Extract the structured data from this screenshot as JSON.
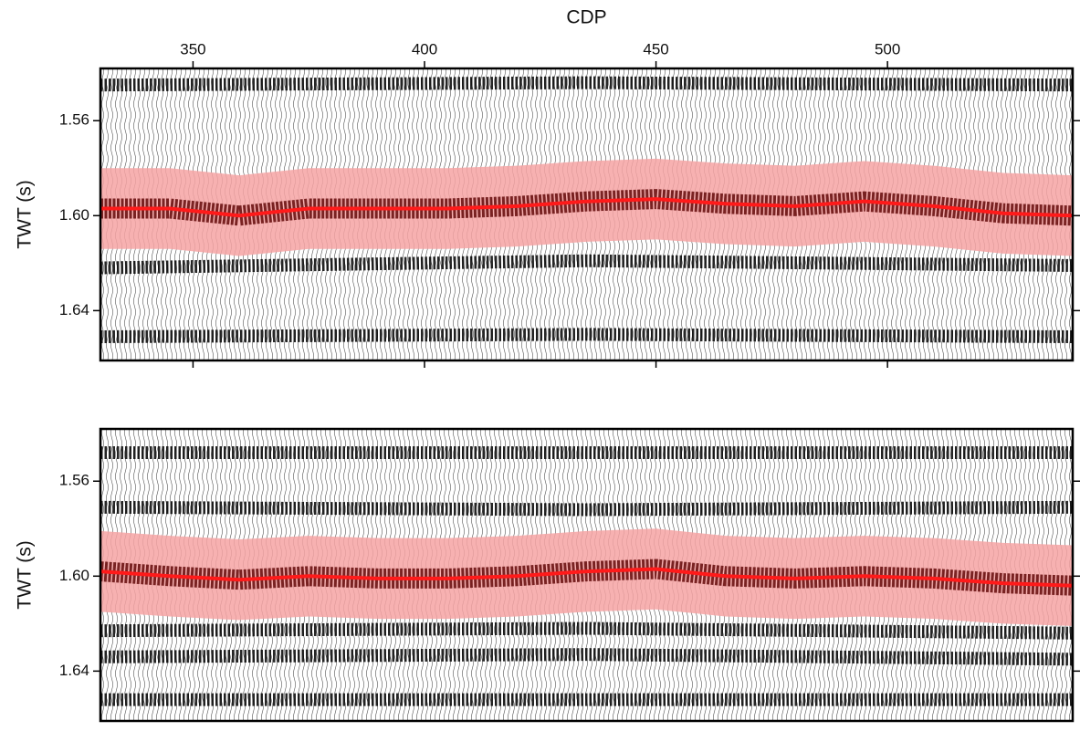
{
  "chart_data": [
    {
      "type": "seismic",
      "xlabel": "CDP",
      "ylabel": "TWT (s)",
      "xlim": [
        330,
        540
      ],
      "xticks": [
        350,
        400,
        450,
        500
      ],
      "ylim": [
        1.538,
        1.661
      ],
      "yticks": [
        1.56,
        {
          "value": 1.6,
          "label": "1.60"
        },
        1.64
      ],
      "x": [
        330,
        345,
        360,
        375,
        390,
        405,
        420,
        435,
        450,
        465,
        480,
        495,
        510,
        525,
        540
      ],
      "series": [
        {
          "color": "#ff1a1a",
          "values": [
            1.597,
            1.597,
            1.6,
            1.597,
            1.597,
            1.597,
            1.596,
            1.594,
            1.593,
            1.595,
            1.596,
            1.594,
            1.596,
            1.599,
            1.6
          ]
        }
      ],
      "band_halfwidth": 0.017,
      "band_color": "#f6a3a3",
      "reflectors": [
        {
          "color": "#000000",
          "x": [
            330,
            435,
            540
          ],
          "values": [
            1.622,
            1.619,
            1.621
          ]
        },
        {
          "color": "#000000",
          "x": [
            330,
            435,
            540
          ],
          "values": [
            1.545,
            1.544,
            1.545
          ]
        },
        {
          "color": "#000000",
          "x": [
            330,
            435,
            540
          ],
          "values": [
            1.651,
            1.65,
            1.651
          ]
        }
      ]
    },
    {
      "type": "seismic",
      "ylabel": "TWT (s)",
      "xlim": [
        330,
        540
      ],
      "ylim": [
        1.538,
        1.661
      ],
      "yticks": [
        1.56,
        {
          "value": 1.6,
          "label": "1.60"
        },
        1.64
      ],
      "x": [
        330,
        345,
        360,
        375,
        390,
        405,
        420,
        435,
        450,
        465,
        480,
        495,
        510,
        525,
        540
      ],
      "series": [
        {
          "color": "#ff1a1a",
          "values": [
            1.598,
            1.6,
            1.6015,
            1.6,
            1.601,
            1.601,
            1.6,
            1.598,
            1.597,
            1.6,
            1.601,
            1.6,
            1.601,
            1.603,
            1.604
          ]
        }
      ],
      "band_halfwidth": 0.017,
      "band_color": "#f6a3a3",
      "reflectors": [
        {
          "color": "#000000",
          "x": [
            330,
            435,
            540
          ],
          "values": [
            1.548,
            1.548,
            1.548
          ]
        },
        {
          "color": "#000000",
          "x": [
            330,
            435,
            540
          ],
          "values": [
            1.571,
            1.572,
            1.571
          ]
        },
        {
          "color": "#000000",
          "x": [
            330,
            435,
            540
          ],
          "values": [
            1.623,
            1.622,
            1.624
          ]
        },
        {
          "color": "#000000",
          "x": [
            330,
            435,
            540
          ],
          "values": [
            1.634,
            1.633,
            1.635
          ]
        },
        {
          "color": "#000000",
          "x": [
            330,
            435,
            540
          ],
          "values": [
            1.652,
            1.652,
            1.652
          ]
        }
      ]
    }
  ]
}
